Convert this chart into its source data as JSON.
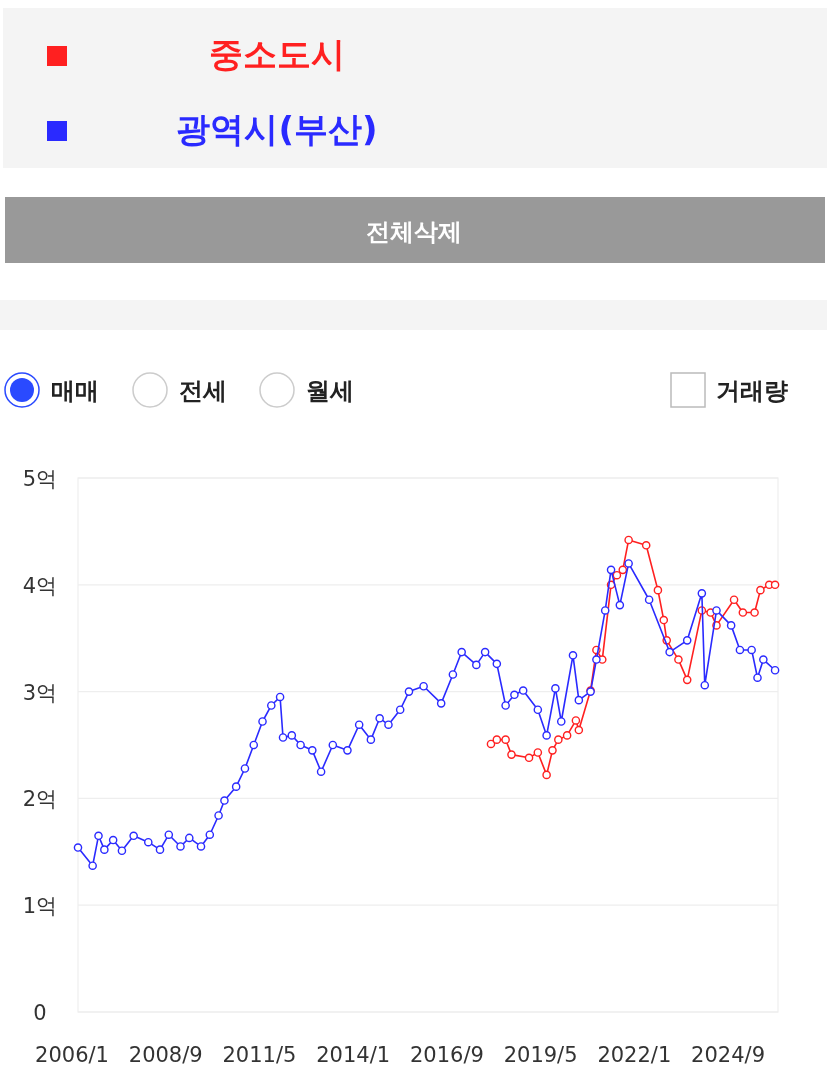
{
  "chart_data": {
    "type": "line",
    "legend": "top left",
    "grid": "y",
    "marker": "circle",
    "line_style": "solid",
    "annotations": [
      "전체삭제",
      "매매",
      "전세",
      "월세",
      "거래량"
    ],
    "xlim": [
      "2006-01",
      "2025-12"
    ],
    "xticks": [
      {
        "value": "2006-01",
        "label": "2006/1"
      },
      {
        "value": "2008-09",
        "label": "2008/9"
      },
      {
        "value": "2011-05",
        "label": "2011/5"
      },
      {
        "value": "2014-01",
        "label": "2014/1"
      },
      {
        "value": "2016-09",
        "label": "2016/9"
      },
      {
        "value": "2019-05",
        "label": "2019/5"
      },
      {
        "value": "2022-01",
        "label": "2022/1"
      },
      {
        "value": "2024-09",
        "label": "2024/9"
      }
    ],
    "ylim": [
      0,
      5
    ],
    "yticks": [
      0,
      {
        "value": 1,
        "label": "1억"
      },
      {
        "value": 2,
        "label": "2억"
      },
      {
        "value": 3,
        "label": "3억"
      },
      {
        "value": 4,
        "label": "4억"
      },
      {
        "value": 5,
        "label": "5억"
      }
    ],
    "series": [
      {
        "name": "중소도시",
        "color": "#ff2020",
        "x": [
          "2017-10",
          "2017-12",
          "2018-03",
          "2018-05",
          "2018-11",
          "2019-02",
          "2019-05",
          "2019-07",
          "2019-09",
          "2019-12",
          "2020-03",
          "2020-04",
          "2020-08",
          "2020-10",
          "2020-12",
          "2021-03",
          "2021-05",
          "2021-07",
          "2021-09",
          "2022-03",
          "2022-07",
          "2022-09",
          "2022-10",
          "2023-02",
          "2023-05",
          "2023-10",
          "2024-01",
          "2024-03",
          "2024-09",
          "2024-12",
          "2025-04",
          "2025-06",
          "2025-09",
          "2025-11"
        ],
        "values": [
          2.51,
          2.55,
          2.55,
          2.41,
          2.38,
          2.43,
          2.22,
          2.45,
          2.55,
          2.59,
          2.73,
          2.64,
          3.01,
          3.39,
          3.3,
          4.0,
          4.09,
          4.14,
          4.42,
          4.37,
          3.95,
          3.67,
          3.48,
          3.3,
          3.11,
          3.76,
          3.74,
          3.62,
          3.86,
          3.74,
          3.74,
          3.95,
          4.0,
          4.0
        ]
      },
      {
        "name": "광역시(부산)",
        "color": "#2a2aff",
        "x": [
          "2006-01",
          "2006-06",
          "2006-08",
          "2006-10",
          "2007-01",
          "2007-04",
          "2007-08",
          "2008-01",
          "2008-05",
          "2008-08",
          "2008-12",
          "2009-03",
          "2009-07",
          "2009-10",
          "2010-01",
          "2010-03",
          "2010-07",
          "2010-10",
          "2011-01",
          "2011-04",
          "2011-07",
          "2011-10",
          "2011-11",
          "2012-02",
          "2012-05",
          "2012-09",
          "2012-12",
          "2013-04",
          "2013-09",
          "2014-01",
          "2014-05",
          "2014-08",
          "2014-11",
          "2015-03",
          "2015-06",
          "2015-11",
          "2016-05",
          "2016-09",
          "2016-12",
          "2017-05",
          "2017-08",
          "2017-12",
          "2018-03",
          "2018-06",
          "2018-09",
          "2019-02",
          "2019-05",
          "2019-08",
          "2019-10",
          "2020-02",
          "2020-04",
          "2020-08",
          "2020-10",
          "2021-01",
          "2021-03",
          "2021-06",
          "2021-09",
          "2022-04",
          "2022-11",
          "2023-05",
          "2023-10",
          "2023-11",
          "2024-03",
          "2024-08",
          "2024-11",
          "2025-03",
          "2025-05",
          "2025-07",
          "2025-11"
        ],
        "values": [
          1.54,
          1.37,
          1.65,
          1.52,
          1.61,
          1.51,
          1.65,
          1.59,
          1.52,
          1.66,
          1.55,
          1.63,
          1.55,
          1.66,
          1.84,
          1.98,
          2.11,
          2.28,
          2.5,
          2.72,
          2.87,
          2.95,
          2.57,
          2.59,
          2.5,
          2.45,
          2.25,
          2.5,
          2.45,
          2.69,
          2.55,
          2.75,
          2.69,
          2.83,
          3.0,
          3.05,
          2.89,
          3.16,
          3.37,
          3.25,
          3.37,
          3.26,
          2.87,
          2.97,
          3.01,
          2.83,
          2.59,
          3.03,
          2.72,
          3.34,
          2.92,
          3.0,
          3.3,
          3.76,
          4.14,
          3.81,
          4.2,
          3.86,
          3.37,
          3.48,
          3.92,
          3.06,
          3.76,
          3.62,
          3.39,
          3.39,
          3.13,
          3.3,
          3.2
        ]
      }
    ]
  }
}
